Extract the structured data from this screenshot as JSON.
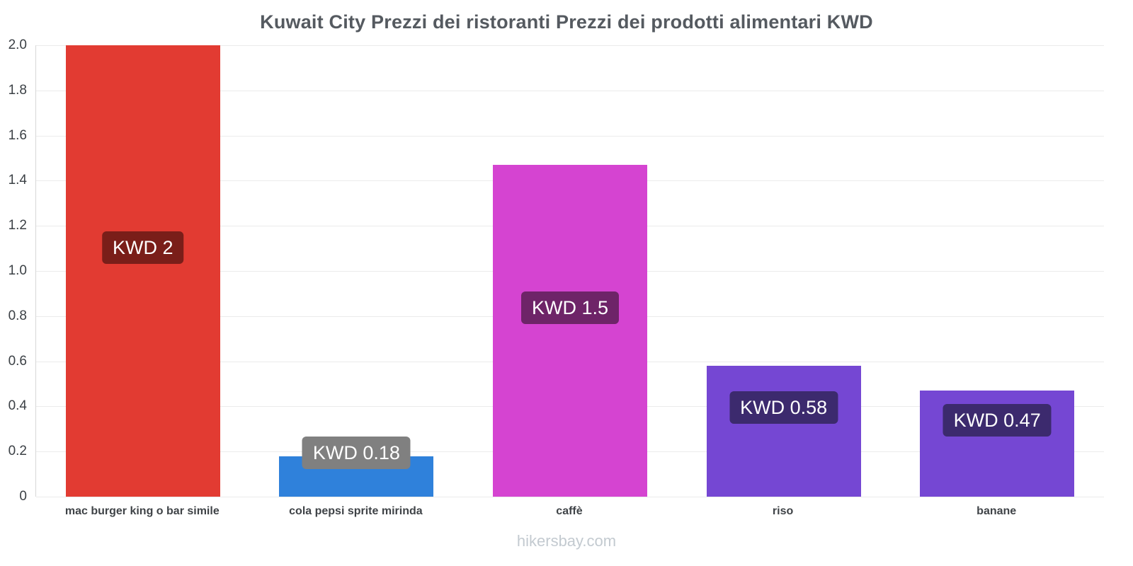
{
  "title": "Kuwait City Prezzi dei ristoranti Prezzi dei prodotti alimentari KWD",
  "footer": "hikersbay.com",
  "chart_data": {
    "type": "bar",
    "title": "Kuwait City Prezzi dei ristoranti Prezzi dei prodotti alimentari KWD",
    "categories": [
      "mac burger king o bar simile",
      "cola pepsi sprite mirinda",
      "caffè",
      "riso",
      "banane"
    ],
    "values": [
      2,
      0.18,
      1.47,
      0.58,
      0.47
    ],
    "value_labels": [
      "KWD 2",
      "KWD 0.18",
      "KWD 1.5",
      "KWD 0.58",
      "KWD 0.47"
    ],
    "bar_colors": [
      "#e23b32",
      "#2f81db",
      "#d544d1",
      "#7547d3",
      "#7547d3"
    ],
    "label_bg_colors": [
      "#7a1e19",
      "#808080",
      "#6e2468",
      "#3c2a6e",
      "#3c2a6e"
    ],
    "xlabel": "",
    "ylabel": "",
    "ylim": [
      0,
      2
    ],
    "ytick_step": 0.2,
    "grid": true,
    "legend": false
  }
}
